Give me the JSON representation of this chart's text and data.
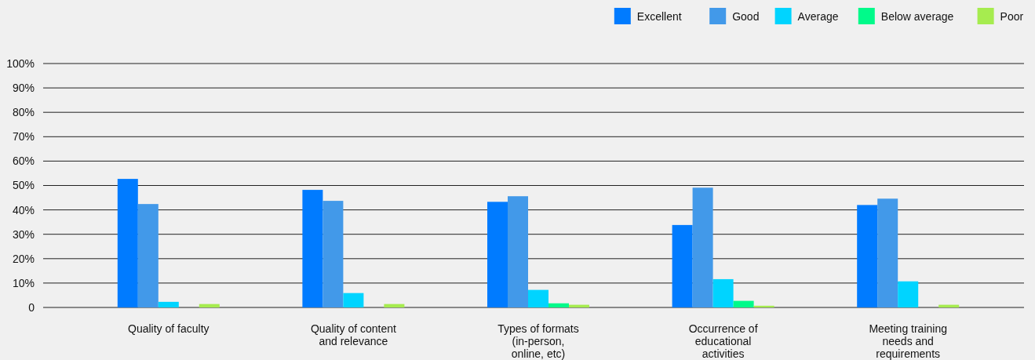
{
  "chart_data": {
    "type": "bar",
    "categories": [
      "Quality of faculty",
      "Quality of content and relevance",
      "Types of formats (in-person, online, etc)",
      "Occurrence of educational activities",
      "Meeting training needs and requirements"
    ],
    "series": [
      {
        "name": "Excellent",
        "color": "#007bff",
        "values": [
          52.7,
          48.2,
          43.3,
          33.8,
          42
        ]
      },
      {
        "name": "Good",
        "color": "#4299e9",
        "values": [
          42.4,
          43.7,
          45.6,
          49.1,
          44.6
        ]
      },
      {
        "name": "Average",
        "color": "#00d4ff",
        "values": [
          2.3,
          5.9,
          7.2,
          11.6,
          10.7
        ]
      },
      {
        "name": "Below average",
        "color": "#00fa8a",
        "values": [
          0,
          0,
          1.7,
          2.7,
          0
        ]
      },
      {
        "name": "Poor",
        "color": "#a6ec4f",
        "values": [
          1.4,
          1.4,
          1.1,
          0.7,
          1.1
        ]
      }
    ],
    "ylim": [
      0,
      100
    ],
    "yticks": [
      {
        "value": 0,
        "label": "0"
      },
      {
        "value": 10,
        "label": "10%"
      },
      {
        "value": 20,
        "label": "20%"
      },
      {
        "value": 30,
        "label": "30%"
      },
      {
        "value": 40,
        "label": "40%"
      },
      {
        "value": 50,
        "label": "50%"
      },
      {
        "value": 60,
        "label": "60%"
      },
      {
        "value": 70,
        "label": "70%"
      },
      {
        "value": 80,
        "label": "80%"
      },
      {
        "value": 90,
        "label": "90%"
      },
      {
        "value": 100,
        "label": "100%"
      }
    ],
    "grid": "y",
    "legend": "top right"
  }
}
